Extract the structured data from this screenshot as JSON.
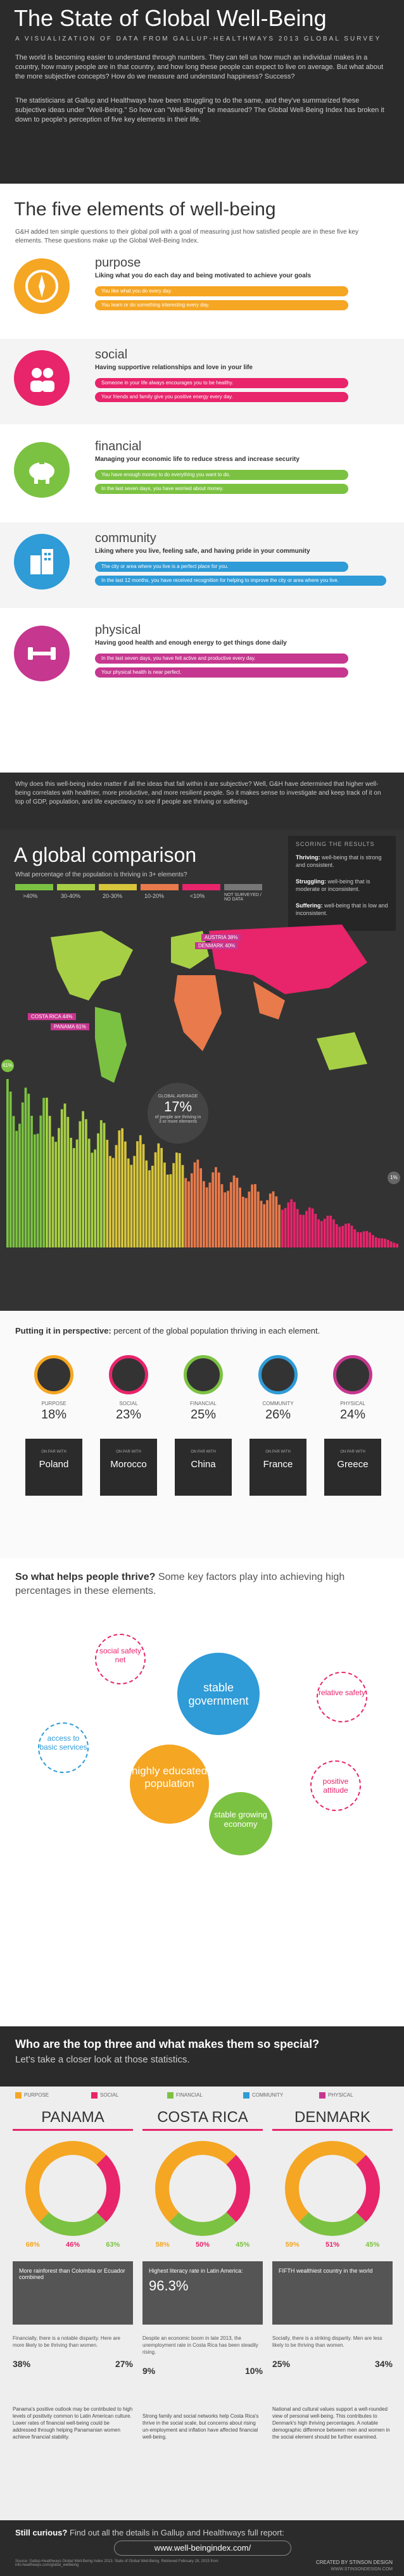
{
  "header": {
    "title": "The State of Global Well-Being",
    "subtitle": "A VISUALIZATION OF DATA FROM GALLUP-HEALTHWAYS 2013 GLOBAL SURVEY",
    "para1": "The world is becoming easier to understand through numbers. They can tell us how much an individual makes in a country, how many people are in that country, and how long these people can expect to live on average. But what about the more subjective concepts? How do we measure and understand happiness? Success?",
    "para2": "The statisticians at Gallup and Healthways have been struggling to do the same, and they've summarized these subjective ideas under \"Well-Being.\" So how can \"Well-Being\" be measured? The Global Well-Being Index has broken it down to people's perception of five key elements in their life."
  },
  "five": {
    "title": "The five elements of well-being",
    "intro": "G&H added ten simple questions to their global poll with a goal of measuring just how satisfied people are in these five key elements. These questions make up the Global Well-Being Index.",
    "elements": [
      {
        "name": "purpose",
        "desc": "Liking what you do each day and being motivated to achieve your goals",
        "q1": "You like what you do every day.",
        "q2": "You learn or do something interesting every day.",
        "color": "#f5a623"
      },
      {
        "name": "social",
        "desc": "Having supportive relationships and love in your life",
        "q1": "Someone in your life always encourages you to be healthy.",
        "q2": "Your friends and family give you positive energy every day.",
        "color": "#e8246b"
      },
      {
        "name": "financial",
        "desc": "Managing your economic life to reduce stress and increase security",
        "q1": "You have enough money to do everything you want to do.",
        "q2": "In the last seven days, you have worried about money.",
        "color": "#7cc242"
      },
      {
        "name": "community",
        "desc": "Liking where you live, feeling safe, and having pride in your community",
        "q1": "The city or area where you live is a perfect place for you.",
        "q2": "In the last 12 months, you have received recognition for helping to improve the city or area where you live.",
        "color": "#2f9bd7"
      },
      {
        "name": "physical",
        "desc": "Having good health and enough energy to get things done daily",
        "q1": "In the last seven days, you have felt active and productive every day.",
        "q2": "Your physical health is near perfect.",
        "color": "#c6378f"
      }
    ]
  },
  "why": {
    "text": "Why does this well-being index matter if all the ideas that fall within it are subjective? Well, G&H have determined that higher well-being correlates with healthier, more productive, and more resilient people. So it makes sense to investigate and keep track of it on top of GDP, population, and life expectancy to see if people are thriving or suffering."
  },
  "global": {
    "title": "A global comparison",
    "question": "What percentage of the population is thriving in 3+ elements?",
    "legend": [
      ">40%",
      "30-40%",
      "20-30%",
      "10-20%",
      "<10%",
      "NOT SURVEYED / NO DATA"
    ],
    "legend_colors": [
      "#7cc242",
      "#a7cf45",
      "#d7c53b",
      "#e87a4b",
      "#e8246b",
      "#777777"
    ],
    "scoring_title": "SCORING THE RESULTS",
    "thriving": "Thriving:",
    "thriving_desc": "well-being that is strong and consistent.",
    "struggling": "Struggling:",
    "struggling_desc": "well-being that is moderate or inconsistent.",
    "suffering": "Suffering:",
    "suffering_desc": "well-being that is low and inconsistent.",
    "callouts": [
      "AUSTRIA",
      "DENMARK",
      "COSTA RICA",
      "PANAMA"
    ],
    "callout_values": [
      "38%",
      "40%",
      "44%",
      "61%"
    ],
    "avg_label": "GLOBAL AVERAGE",
    "avg_value": "17%",
    "avg_desc": "of people are thriving in 3 or more elements",
    "bar_left": "61%",
    "bar_right": "1%"
  },
  "perspective": {
    "title": "Putting it in perspective:",
    "text": "percent of the global population thriving in each element.",
    "items": [
      {
        "label": "PURPOSE",
        "value": "18%",
        "country": "Poland",
        "color": "#f5a623"
      },
      {
        "label": "SOCIAL",
        "value": "23%",
        "country": "Morocco",
        "color": "#e8246b"
      },
      {
        "label": "FINANCIAL",
        "value": "25%",
        "country": "China",
        "color": "#7cc242"
      },
      {
        "label": "COMMUNITY",
        "value": "26%",
        "country": "France",
        "color": "#2f9bd7"
      },
      {
        "label": "PHYSICAL",
        "value": "24%",
        "country": "Greece",
        "color": "#c6378f"
      }
    ],
    "on_par": "ON PAR WITH"
  },
  "help": {
    "title": "So what helps people thrive?",
    "text": "Some key factors play into achieving high percentages in these elements.",
    "bubbles": [
      "social safety net",
      "stable government",
      "relative safety",
      "access to basic services",
      "highly educated population",
      "positive attitude",
      "stable growing economy"
    ]
  },
  "top3": {
    "title": "Who are the top three and what makes them so special?",
    "subtitle": "Let's take a closer look at those statistics.",
    "legend": [
      "PURPOSE",
      "SOCIAL",
      "FINANCIAL",
      "COMMUNITY",
      "PHYSICAL"
    ],
    "countries": [
      {
        "name": "PANAMA",
        "stats": [
          "68%",
          "46%",
          "63%"
        ],
        "fact": "More rainforest than Colombia or Ecuador combined",
        "desc1": "Financially, there is a notable disparity. Here are more likely to be thriving than women.",
        "pct_a": "38%",
        "pct_b": "27%",
        "desc2": "Panama's positive outlook may be contributed to high levels of positivity common to Latin American culture. Lower rates of financial well-being could be addressed through helping Panamanian women achieve financial stability."
      },
      {
        "name": "COSTA RICA",
        "stats": [
          "58%",
          "50%",
          "45%"
        ],
        "fact": "Highest literacy rate in Latin America:",
        "fact_value": "96.3%",
        "desc1": "Despite an economic boom in late 2013, the unemployment rate in Costa Rica has been steadily rising.",
        "pct_a": "9%",
        "pct_b": "10%",
        "desc2": "Strong family and social networks help Costa Rica's thrive in the social scale, but concerns about rising un-employment and inflation have affected financial well-being."
      },
      {
        "name": "DENMARK",
        "stats": [
          "59%",
          "51%",
          "45%"
        ],
        "fact": "FIFTH wealthiest country in the world",
        "desc1": "Socially, there is a striking disparity. Men are less likely to be thriving than women.",
        "pct_a": "25%",
        "pct_b": "34%",
        "desc2": "National and cultural values support a well-rounded view of personal well-being. This contributes to Denmark's high thriving percentages. A notable demographic difference between men and women in the social element should be further examined."
      }
    ]
  },
  "footer": {
    "curious": "Still curious?",
    "curious_text": "Find out all the details in Gallup and Healthways full report:",
    "url": "www.well-beingindex.com/",
    "sources": "Source: Gallup-Healthways Global Well-Being Index 2013. State of Global Well-Being. Retrieved February 28, 2015 from info.healthways.com/global_wellbeing",
    "credit": "CREATED BY STINSON DESIGN",
    "credit_url": "WWW.STINSONDESIGN.COM"
  },
  "colors": {
    "purpose": "#f5a623",
    "social": "#e8246b",
    "financial": "#7cc242",
    "community": "#2f9bd7",
    "physical": "#c6378f",
    "dark": "#2b2b2b"
  }
}
